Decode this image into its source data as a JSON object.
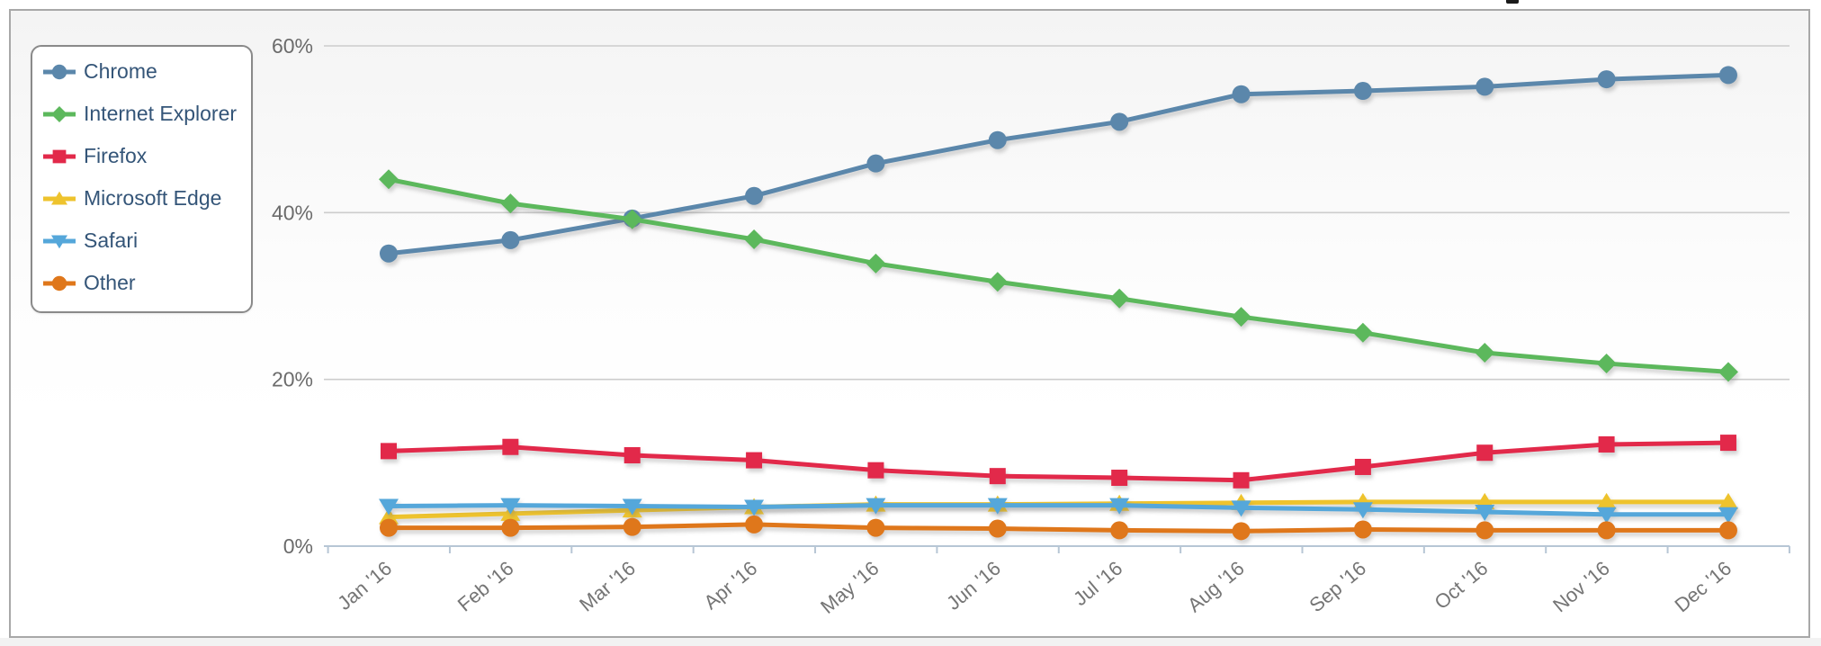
{
  "chart_data": {
    "type": "line",
    "title": "",
    "categories": [
      "Jan '16",
      "Feb '16",
      "Mar '16",
      "Apr '16",
      "May '16",
      "Jun '16",
      "Jul '16",
      "Aug '16",
      "Sep '16",
      "Oct '16",
      "Nov '16",
      "Dec '16"
    ],
    "unit": "%",
    "ylim": [
      0,
      62
    ],
    "grid": true,
    "legend_position": "top-left",
    "y_ticks": [
      {
        "value": 0,
        "label": "0%"
      },
      {
        "value": 20,
        "label": "20%"
      },
      {
        "value": 40,
        "label": "40%"
      },
      {
        "value": 60,
        "label": "60%"
      }
    ],
    "series": [
      {
        "name": "Chrome",
        "key": "chrome",
        "color": "#5b87ab",
        "marker": "circle",
        "values": [
          35.1,
          36.7,
          39.3,
          42.0,
          45.9,
          48.7,
          50.9,
          54.2,
          54.6,
          55.1,
          56.0,
          56.5
        ]
      },
      {
        "name": "Internet Explorer",
        "key": "internet-explorer",
        "color": "#5cb85c",
        "marker": "diamond",
        "values": [
          44.0,
          41.1,
          39.2,
          36.8,
          33.9,
          31.7,
          29.7,
          27.5,
          25.6,
          23.2,
          21.9,
          20.9
        ]
      },
      {
        "name": "Firefox",
        "key": "firefox",
        "color": "#e2294a",
        "marker": "square",
        "values": [
          11.4,
          11.9,
          10.9,
          10.3,
          9.1,
          8.4,
          8.2,
          7.9,
          9.5,
          11.2,
          12.2,
          12.4
        ]
      },
      {
        "name": "Microsoft Edge",
        "key": "microsoft-edge",
        "color": "#eec32d",
        "marker": "triangle-up",
        "values": [
          3.5,
          3.9,
          4.3,
          4.7,
          5.0,
          5.0,
          5.1,
          5.2,
          5.3,
          5.3,
          5.3,
          5.3
        ]
      },
      {
        "name": "Safari",
        "key": "safari",
        "color": "#55a7da",
        "marker": "triangle-down",
        "values": [
          4.8,
          4.9,
          4.8,
          4.7,
          4.9,
          4.9,
          4.9,
          4.6,
          4.4,
          4.1,
          3.8,
          3.8
        ]
      },
      {
        "name": "Other",
        "key": "other",
        "color": "#df771b",
        "marker": "circle",
        "values": [
          2.2,
          2.2,
          2.3,
          2.6,
          2.2,
          2.1,
          1.9,
          1.8,
          2.0,
          1.9,
          1.9,
          1.9
        ]
      }
    ],
    "axis_colors": {
      "gridline": "#cccccc",
      "baseline": "#b7c6d5",
      "y_label": "#6b6b6b",
      "x_label": "#757575"
    }
  },
  "legend": {
    "text_color": "#345578"
  }
}
